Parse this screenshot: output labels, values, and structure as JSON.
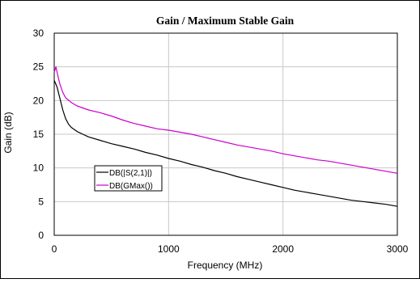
{
  "chart_data": {
    "type": "line",
    "title": "Gain / Maximum Stable Gain",
    "xlabel": "Frequency (MHz)",
    "ylabel": "Gain (dB)",
    "xlim": [
      0,
      3000
    ],
    "ylim": [
      0,
      30
    ],
    "xticks": [
      "0",
      "1000",
      "2000",
      "3000"
    ],
    "yticks": [
      "0",
      "5",
      "10",
      "15",
      "20",
      "25",
      "30"
    ],
    "grid": true,
    "legend_position": "lower-left",
    "series": [
      {
        "name": "DB(|S(2,1)|)",
        "color": "#000000",
        "x": [
          0,
          25,
          50,
          75,
          100,
          125,
          150,
          200,
          250,
          300,
          400,
          500,
          600,
          700,
          800,
          900,
          1000,
          1100,
          1200,
          1300,
          1400,
          1500,
          1600,
          1700,
          1800,
          1900,
          2000,
          2100,
          2200,
          2300,
          2400,
          2500,
          2600,
          2700,
          2800,
          2900,
          3000
        ],
        "y": [
          23.0,
          22.0,
          20.3,
          18.6,
          17.3,
          16.5,
          16.0,
          15.4,
          15.0,
          14.6,
          14.1,
          13.6,
          13.2,
          12.8,
          12.3,
          11.9,
          11.4,
          11.0,
          10.5,
          10.1,
          9.6,
          9.2,
          8.7,
          8.3,
          7.9,
          7.5,
          7.1,
          6.7,
          6.4,
          6.1,
          5.8,
          5.5,
          5.2,
          5.0,
          4.8,
          4.6,
          4.3
        ]
      },
      {
        "name": "DB(GMax())",
        "color": "#cc00cc",
        "x": [
          0,
          15,
          30,
          50,
          75,
          100,
          150,
          200,
          250,
          300,
          400,
          500,
          600,
          700,
          800,
          900,
          1000,
          1100,
          1200,
          1300,
          1400,
          1500,
          1600,
          1700,
          1800,
          1900,
          2000,
          2100,
          2200,
          2300,
          2400,
          2500,
          2600,
          2700,
          2800,
          2900,
          3000
        ],
        "y": [
          24.2,
          25.0,
          23.8,
          22.4,
          21.2,
          20.4,
          19.7,
          19.2,
          18.9,
          18.6,
          18.2,
          17.7,
          17.1,
          16.6,
          16.2,
          15.8,
          15.6,
          15.3,
          15.0,
          14.6,
          14.2,
          13.8,
          13.4,
          13.1,
          12.8,
          12.5,
          12.1,
          11.8,
          11.5,
          11.2,
          11.0,
          10.7,
          10.4,
          10.1,
          9.8,
          9.5,
          9.2
        ]
      }
    ]
  }
}
